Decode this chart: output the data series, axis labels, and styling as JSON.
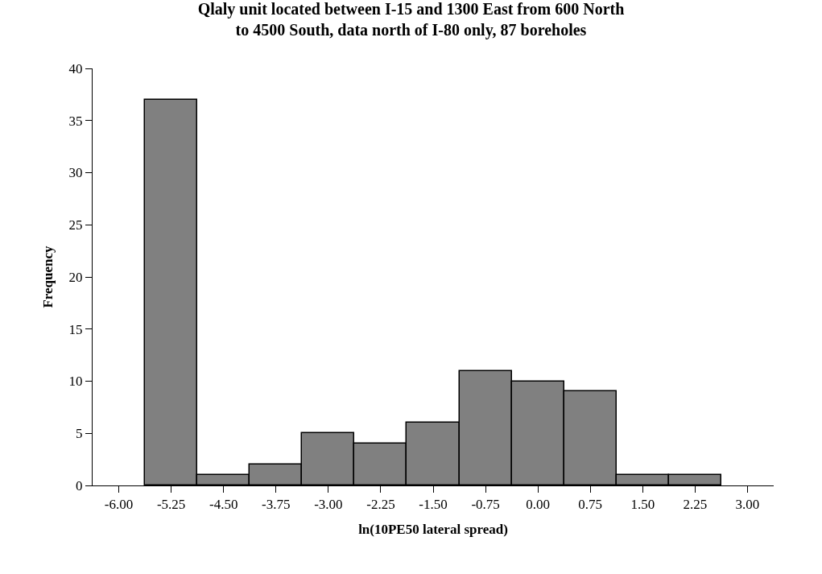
{
  "chart_data": {
    "type": "bar",
    "title": "Qlaly unit located between I-15 and 1300 East from 600 North\nto 4500 South, data north of I-80 only, 87 boreholes",
    "xlabel": "ln(10PE50 lateral spread)",
    "ylabel": "Frequency",
    "categories": [
      "-6.00",
      "-5.25",
      "-4.50",
      "-3.75",
      "-3.00",
      "-2.25",
      "-1.50",
      "-0.75",
      "0.00",
      "0.75",
      "1.50",
      "2.25",
      "3.00"
    ],
    "values": [
      null,
      37,
      1,
      2,
      5,
      4,
      6,
      11,
      10,
      9,
      1,
      1,
      null
    ],
    "color": "#808080",
    "ylim": [
      0,
      40
    ],
    "yticks": [
      0,
      5,
      10,
      15,
      20,
      25,
      30,
      35,
      40
    ],
    "grid": false
  }
}
